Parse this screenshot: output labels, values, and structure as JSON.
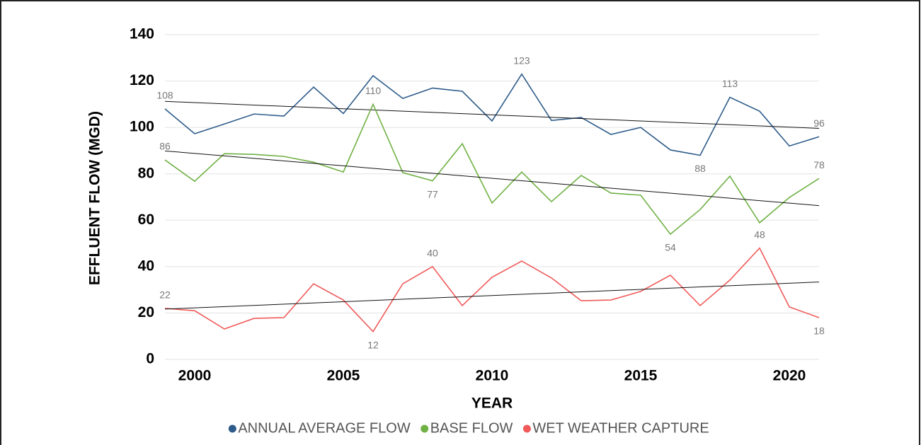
{
  "chart_data": {
    "type": "line",
    "x_label": "YEAR",
    "y_label": "EFFLUENT FLOW (MGD)",
    "x": [
      1999,
      2000,
      2001,
      2002,
      2003,
      2004,
      2005,
      2006,
      2007,
      2008,
      2009,
      2010,
      2011,
      2012,
      2013,
      2014,
      2015,
      2016,
      2017,
      2018,
      2019,
      2020,
      2021
    ],
    "series": [
      {
        "name": "ANNUAL AVERAGE FLOW",
        "color": "#2e5c8a",
        "values": [
          108,
          97.3,
          101.5,
          105.8,
          104.9,
          117.4,
          106,
          122.3,
          112.5,
          117,
          115.6,
          102.8,
          123,
          103,
          104.3,
          97,
          100,
          90.3,
          88,
          113,
          107,
          92,
          96
        ],
        "value_labels": [
          "108",
          null,
          null,
          null,
          null,
          null,
          null,
          null,
          null,
          null,
          null,
          null,
          "123",
          null,
          null,
          null,
          null,
          null,
          "88",
          "113",
          null,
          null,
          "96"
        ]
      },
      {
        "name": "BASE FLOW",
        "color": "#70b144",
        "values": [
          86,
          76.8,
          88.7,
          88.4,
          87.5,
          85,
          80.8,
          110,
          80.5,
          77,
          93,
          67.4,
          80.8,
          68,
          79.3,
          71.7,
          70.8,
          54,
          64.6,
          79,
          58.9,
          69.8,
          78
        ],
        "value_labels": [
          "86",
          null,
          null,
          null,
          null,
          null,
          null,
          "110",
          null,
          "77",
          null,
          null,
          null,
          null,
          null,
          null,
          null,
          "54",
          null,
          null,
          null,
          null,
          "78"
        ]
      },
      {
        "name": "WET WEATHER CAPTURE",
        "color": "#f05a5a",
        "values": [
          22,
          21,
          13.1,
          17.7,
          18,
          32.6,
          25.6,
          12,
          32.6,
          40,
          23.2,
          35.4,
          42.4,
          35.1,
          25.3,
          25.6,
          29.3,
          36.3,
          23.2,
          34.2,
          48,
          22.6,
          18
        ],
        "value_labels": [
          "22",
          null,
          null,
          null,
          null,
          null,
          null,
          "12",
          null,
          "40",
          null,
          null,
          null,
          null,
          null,
          null,
          null,
          null,
          null,
          null,
          "48",
          null,
          "18"
        ]
      }
    ],
    "xlim": [
      1999,
      2021
    ],
    "xticks": [
      2000,
      2005,
      2010,
      2015,
      2020
    ],
    "ylim": [
      0,
      140
    ],
    "yticks": [
      0,
      20,
      40,
      60,
      80,
      100,
      120,
      140
    ],
    "grid": true,
    "trendline": true,
    "legend": "bottom"
  }
}
